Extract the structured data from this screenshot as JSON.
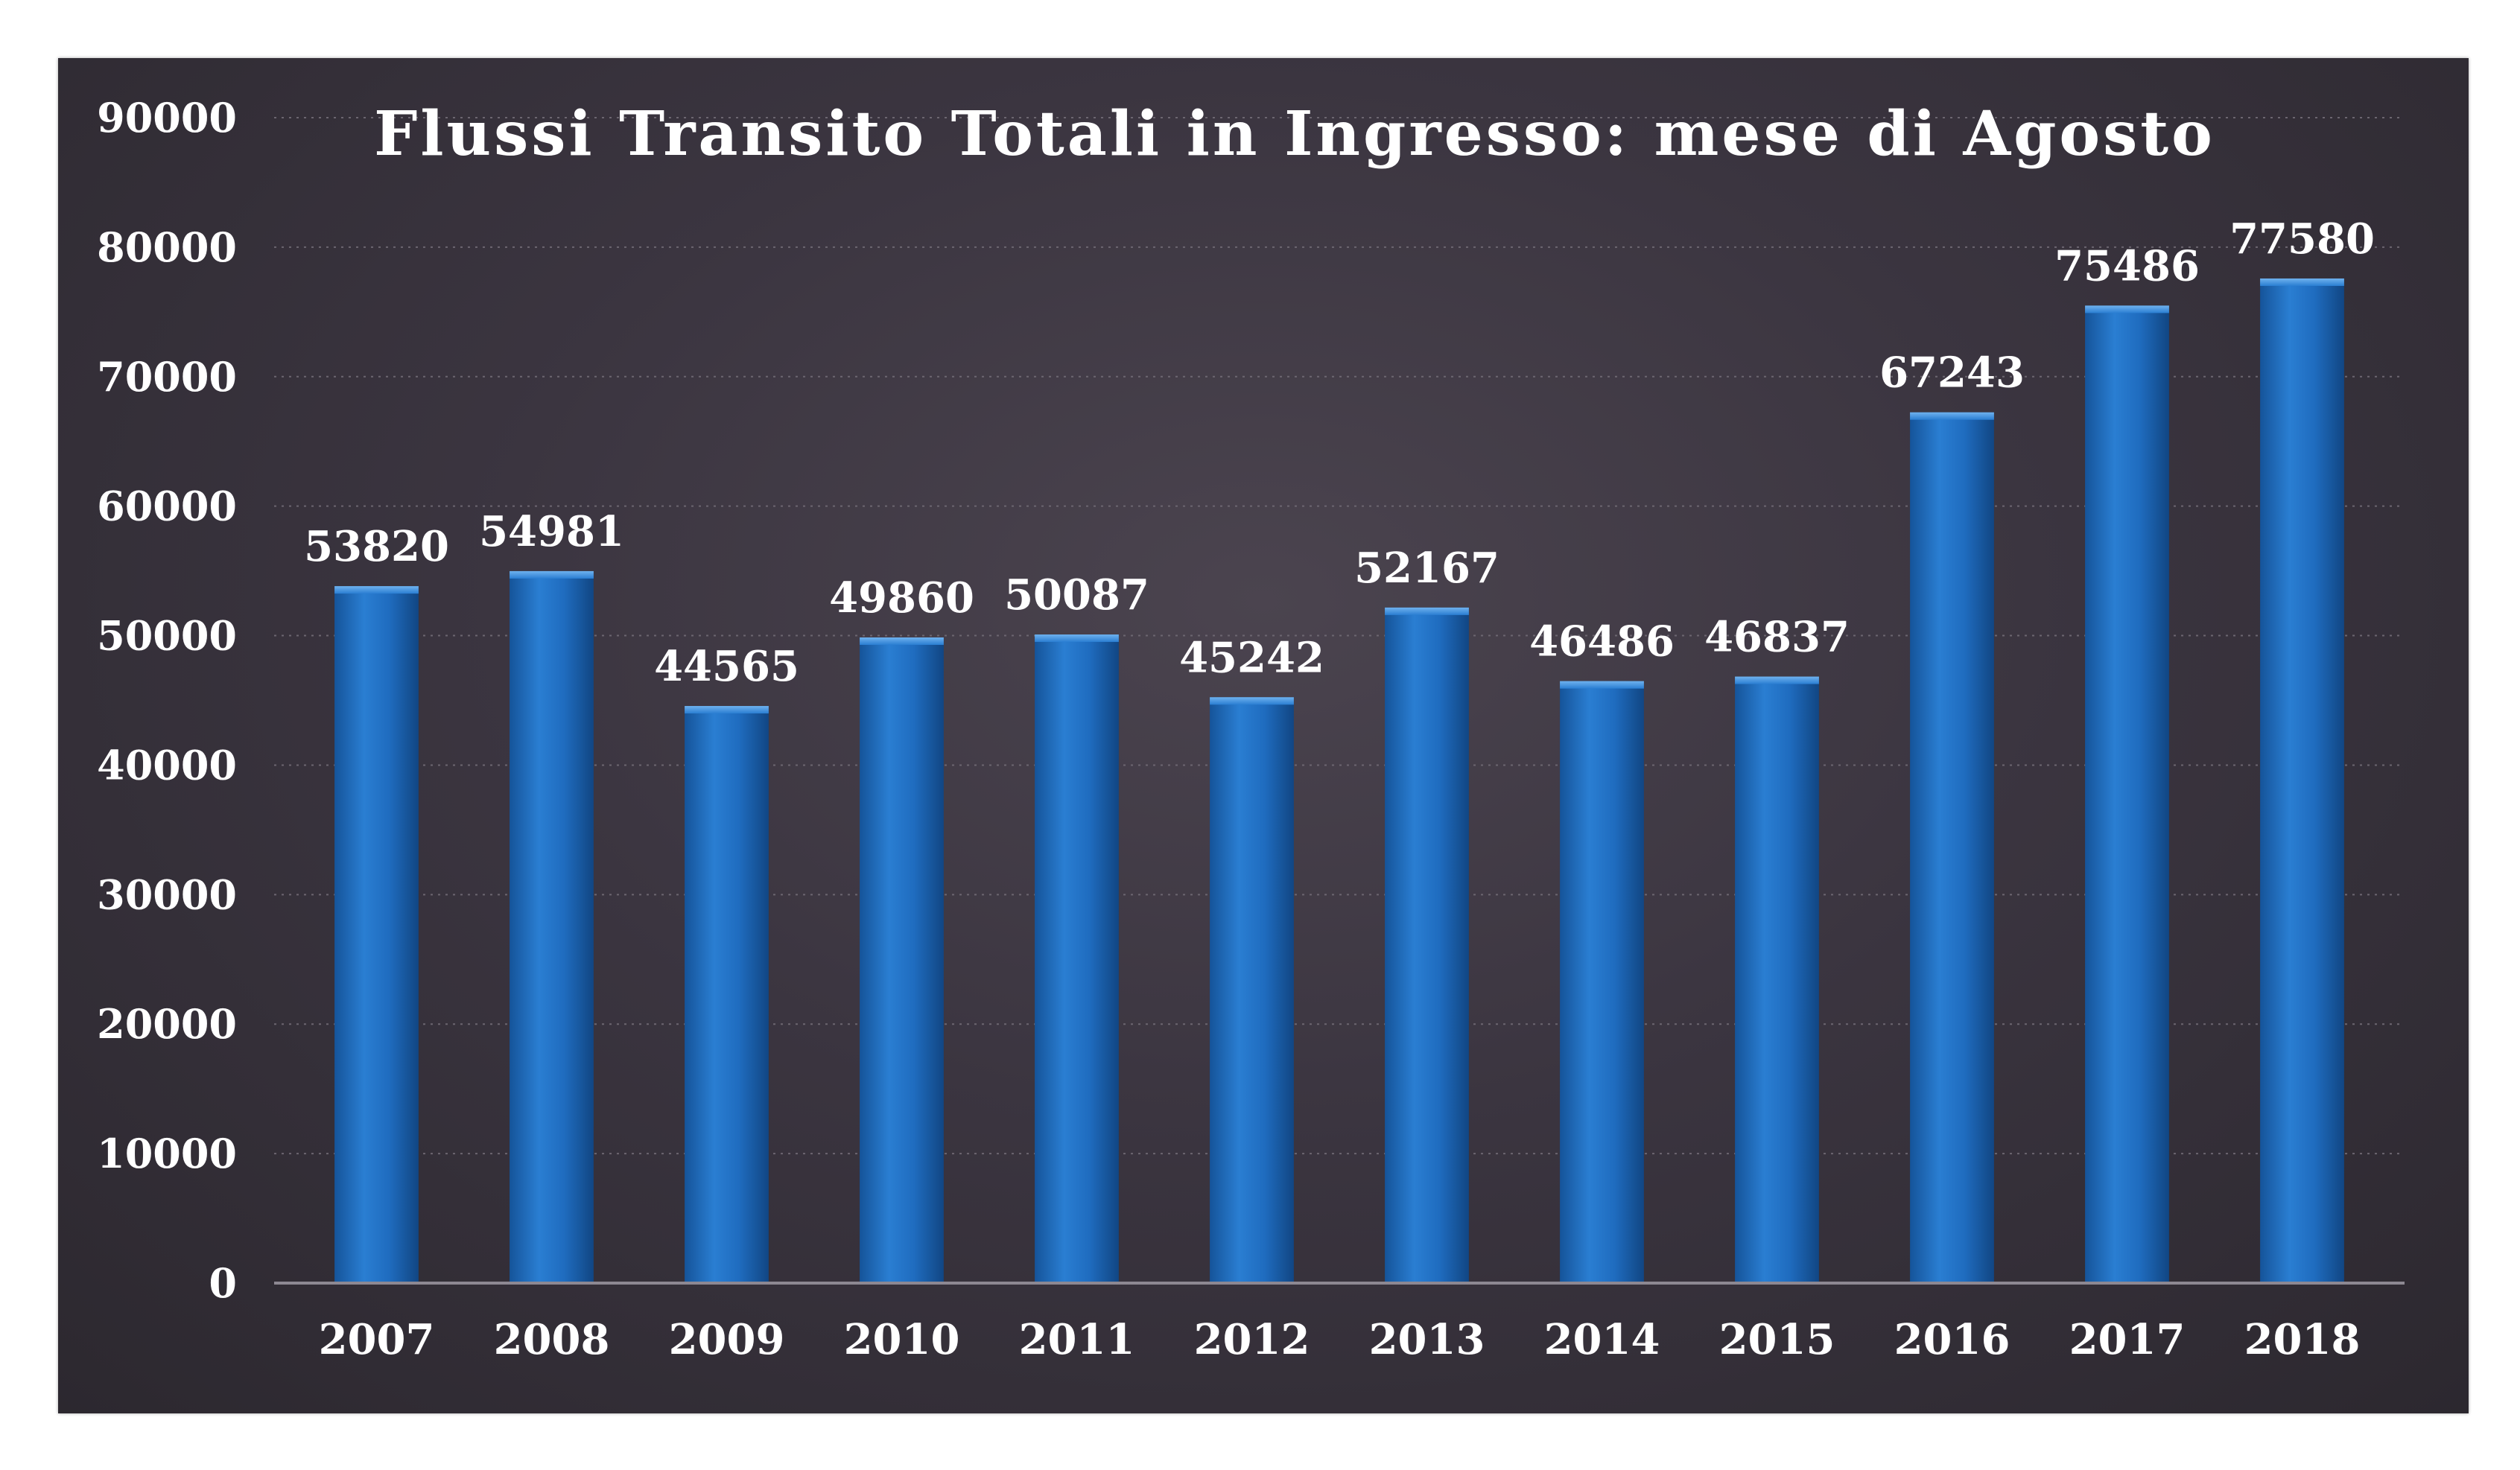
{
  "chart_data": {
    "type": "bar",
    "title": "Flussi Transito Totali in Ingresso: mese di Agosto",
    "xlabel": "",
    "ylabel": "",
    "categories": [
      "2007",
      "2008",
      "2009",
      "2010",
      "2011",
      "2012",
      "2013",
      "2014",
      "2015",
      "2016",
      "2017",
      "2018"
    ],
    "values": [
      53820,
      54981,
      44565,
      49860,
      50087,
      45242,
      52167,
      46486,
      46837,
      67243,
      75486,
      77580
    ],
    "ylim": [
      0,
      90000
    ],
    "yticks": [
      0,
      10000,
      20000,
      30000,
      40000,
      50000,
      60000,
      70000,
      80000,
      90000
    ],
    "data_labels": true,
    "grid": true,
    "legend": "none",
    "colors": {
      "bar": "#1e6bbd",
      "background": "#3b3540",
      "text": "#ffffff"
    }
  }
}
